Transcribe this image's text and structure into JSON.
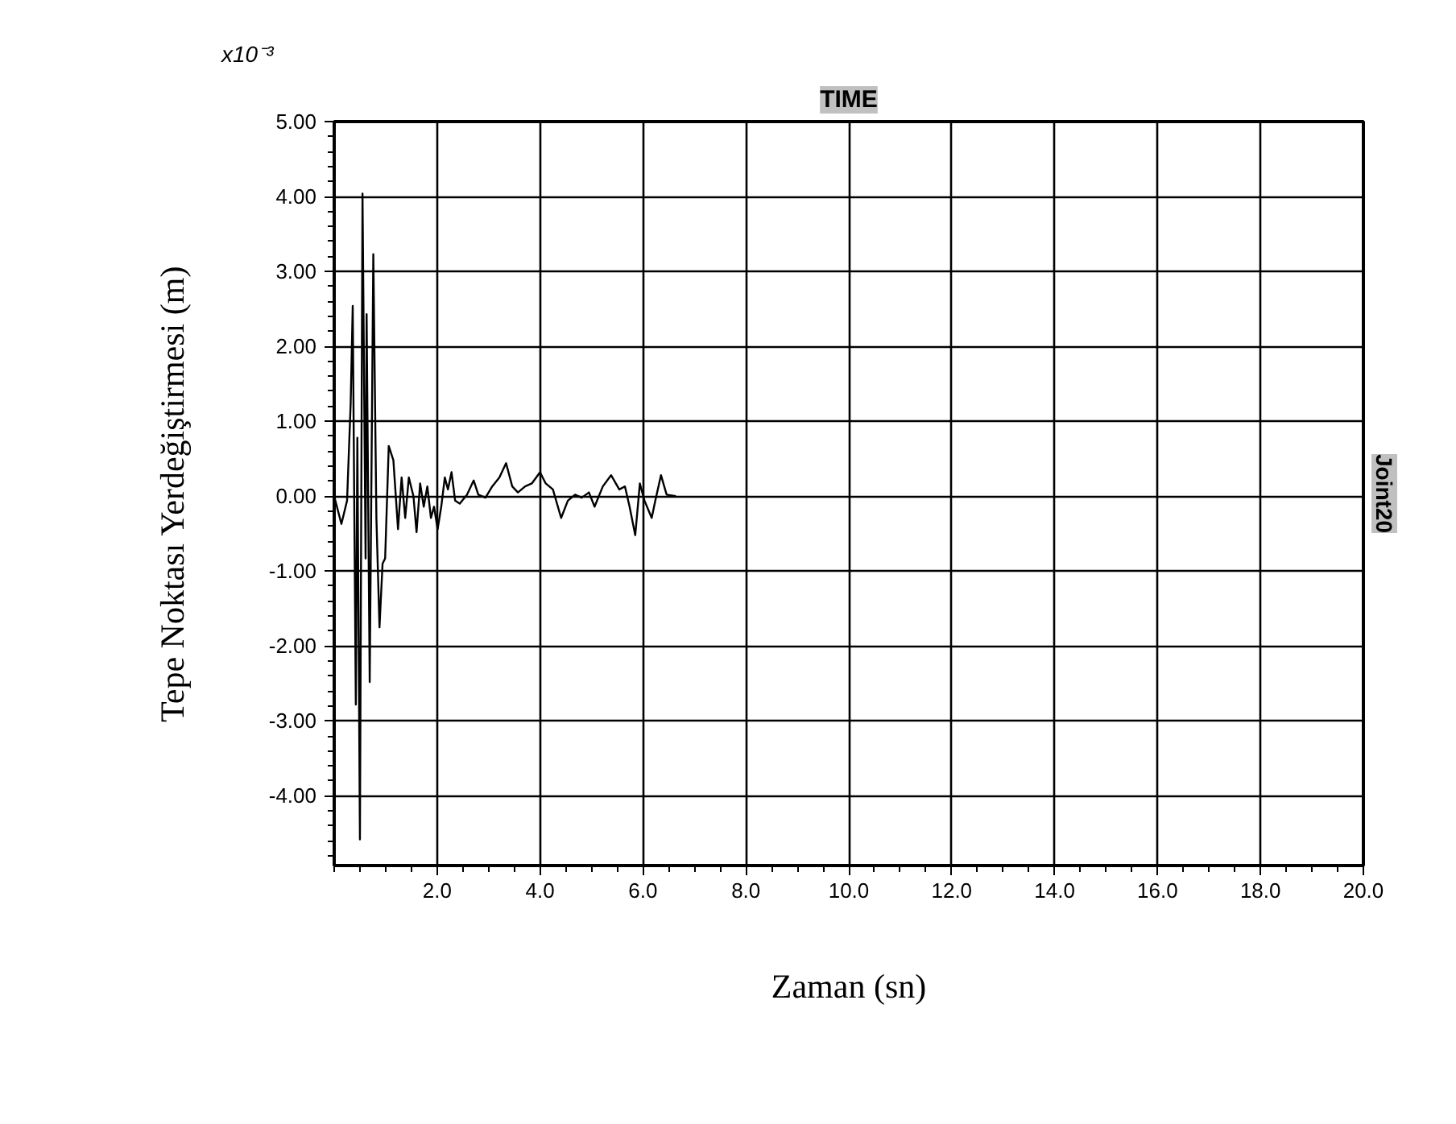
{
  "chart_data": {
    "type": "line",
    "title": "TIME",
    "xlabel": "Zaman (sn)",
    "ylabel": "Tepe Noktası Yerdeğiştirmesi (m)",
    "y2label": "Joint20",
    "annotations": [
      "x10⁻³"
    ],
    "series": [
      {
        "color": "#000000",
        "x": [
          0,
          0.14,
          0.25,
          0.32,
          0.36,
          0.42,
          0.45,
          0.5,
          0.55,
          0.61,
          0.63,
          0.69,
          0.76,
          0.82,
          0.88,
          0.94,
          0.99,
          1.06,
          1.15,
          1.24,
          1.31,
          1.38,
          1.45,
          1.54,
          1.6,
          1.67,
          1.74,
          1.81,
          1.88,
          1.94,
          2.01,
          2.08,
          2.15,
          2.21,
          2.28,
          2.35,
          2.44,
          2.58,
          2.71,
          2.8,
          2.94,
          3.07,
          3.21,
          3.34,
          3.46,
          3.57,
          3.71,
          3.84,
          4.0,
          4.11,
          4.25,
          4.41,
          4.54,
          4.68,
          4.81,
          4.95,
          5.06,
          5.22,
          5.38,
          5.54,
          5.65,
          5.74,
          5.85,
          5.94,
          6.03,
          6.17,
          6.24,
          6.35,
          6.46,
          6.64
        ],
        "values": [
          0,
          -0.37,
          -0.06,
          1.24,
          2.54,
          -2.78,
          0.78,
          -4.58,
          4.04,
          -0.83,
          2.43,
          -2.48,
          3.23,
          -0.29,
          -1.75,
          -0.9,
          -0.83,
          0.67,
          0.48,
          -0.44,
          0.25,
          -0.29,
          0.25,
          0,
          -0.48,
          0.17,
          -0.14,
          0.13,
          -0.29,
          -0.14,
          -0.44,
          -0.14,
          0.25,
          0.09,
          0.32,
          -0.06,
          -0.1,
          0.02,
          0.21,
          0.02,
          -0.02,
          0.13,
          0.25,
          0.44,
          0.13,
          0.05,
          0.13,
          0.17,
          0.32,
          0.17,
          0.09,
          -0.29,
          -0.06,
          0.02,
          -0.02,
          0.05,
          -0.14,
          0.13,
          0.28,
          0.09,
          0.13,
          -0.14,
          -0.52,
          0.17,
          -0.06,
          -0.29,
          -0.06,
          0.28,
          0.02,
          0
        ]
      }
    ],
    "xlim": [
      0,
      20
    ],
    "ylim": [
      -4.93,
      5.0
    ],
    "xticks": [
      {
        "value": 2,
        "label": "2.0"
      },
      {
        "value": 4,
        "label": "4.0"
      },
      {
        "value": 6,
        "label": "6.0"
      },
      {
        "value": 8,
        "label": "8.0"
      },
      {
        "value": 10,
        "label": "10.0"
      },
      {
        "value": 12,
        "label": "12.0"
      },
      {
        "value": 14,
        "label": "14.0"
      },
      {
        "value": 16,
        "label": "16.0"
      },
      {
        "value": 18,
        "label": "18.0"
      },
      {
        "value": 20,
        "label": "20.0"
      }
    ],
    "yticks": [
      {
        "value": -4,
        "label": "-4.00"
      },
      {
        "value": -3,
        "label": "-3.00"
      },
      {
        "value": -2,
        "label": "-2.00"
      },
      {
        "value": -1,
        "label": "-1.00"
      },
      {
        "value": 0,
        "label": "0.00"
      },
      {
        "value": 1,
        "label": "1.00"
      },
      {
        "value": 2,
        "label": "2.00"
      },
      {
        "value": 3,
        "label": "3.00"
      },
      {
        "value": 4,
        "label": "4.00"
      },
      {
        "value": 5,
        "label": "5.00"
      }
    ],
    "grid": true,
    "line_style": "solid"
  }
}
